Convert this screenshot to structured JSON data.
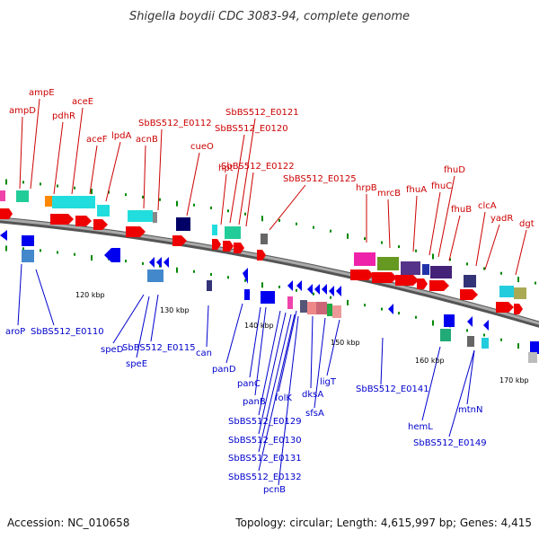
{
  "title": "Shigella boydii CDC 3083-94, complete genome",
  "accession": "Accession: NC_010658",
  "summary": "Topology: circular; Length: 4,615,997 bp; Genes: 4,415",
  "colors": {
    "forward": "#ee0000",
    "reverse": "#0000ee",
    "label_forward": "#cc0000",
    "label_reverse": "#0000cc",
    "tick": "#008800",
    "backbone": "#888888"
  },
  "ticks": [
    "120 kbp",
    "130 kbp",
    "140 kbp",
    "150 kbp",
    "160 kbp",
    "170 kbp"
  ],
  "forward_genes": [
    "ampD",
    "ampE",
    "pdhR",
    "aceE",
    "aceF",
    "lpdA",
    "acnB",
    "SbBS512_E0112",
    "cueO",
    "hpt",
    "SbBS512_E0120",
    "SbBS512_E0121",
    "SbBS512_E0122",
    "SbBS512_E0125",
    "hrpB",
    "mrcB",
    "fhuA",
    "fhuC",
    "fhuD",
    "fhuB",
    "clcA",
    "yadR",
    "dgt"
  ],
  "reverse_genes": [
    "aroP",
    "SbBS512_E0110",
    "speD",
    "speE",
    "SbBS512_E0115",
    "can",
    "panD",
    "panC",
    "panB",
    "folK",
    "SbBS512_E0129",
    "SbBS512_E0130",
    "SbBS512_E0131",
    "SbBS512_E0132",
    "pcnB",
    "dksA",
    "sfsA",
    "ligT",
    "SbBS512_E0141",
    "hemL",
    "mtnN",
    "SbBS512_E0149"
  ]
}
